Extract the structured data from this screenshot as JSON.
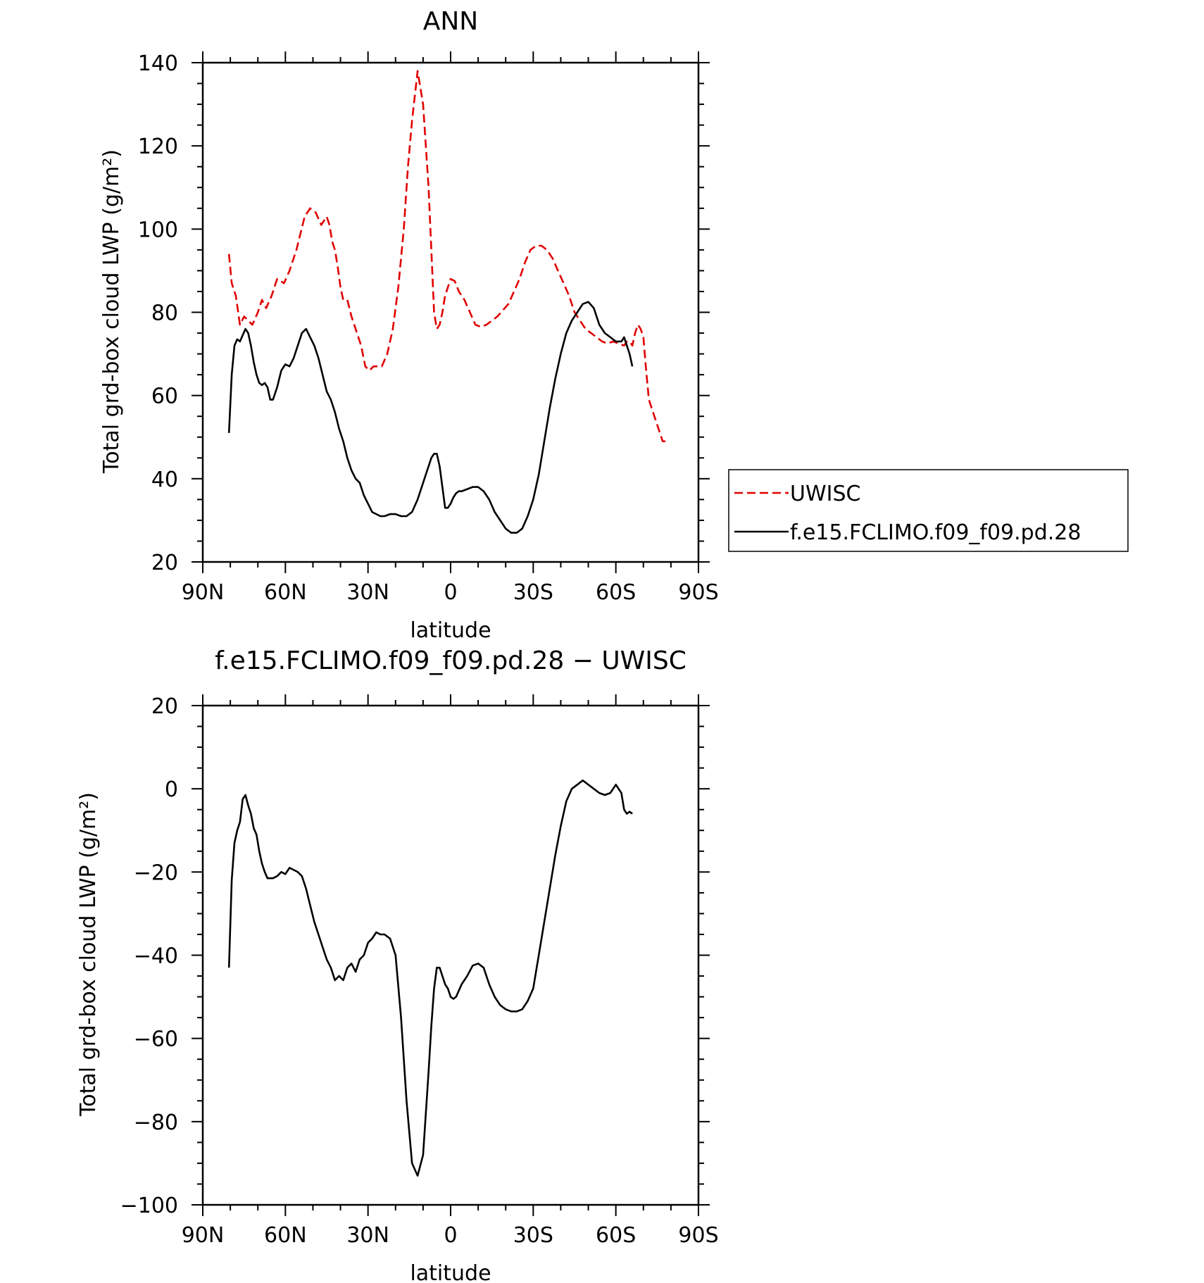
{
  "chart_data": [
    {
      "type": "line",
      "title": "ANN",
      "xlabel": "latitude",
      "ylabel": "Total grd-box cloud LWP (g/m²)",
      "xlim": [
        90,
        -90
      ],
      "ylim": [
        20,
        140
      ],
      "xticks": [
        90,
        60,
        30,
        0,
        -30,
        -60,
        -90
      ],
      "xtick_labels": [
        "90N",
        "60N",
        "30N",
        "0",
        "30S",
        "60S",
        "90S"
      ],
      "yticks": [
        20,
        40,
        60,
        80,
        100,
        120,
        140
      ],
      "ytick_labels": [
        "20",
        "40",
        "60",
        "80",
        "100",
        "120",
        "140"
      ],
      "legend": {
        "placement": "right",
        "entries": [
          {
            "label": "UWISC",
            "color": "#e00000",
            "style": "dashed"
          },
          {
            "label": "f.e15.FCLIMO.f09_f09.pd.28",
            "color": "#000000",
            "style": "solid"
          }
        ]
      },
      "series": [
        {
          "name": "UWISC",
          "color": "#e00000",
          "style": "dashed",
          "x": [
            80.5,
            79.5,
            78,
            76.5,
            75,
            73.5,
            72,
            70,
            68.5,
            67,
            65,
            63,
            60.5,
            58.5,
            56,
            53,
            51,
            49,
            47,
            45,
            44,
            43,
            42,
            41,
            40,
            39,
            37.5,
            36,
            34,
            32.5,
            31,
            29.5,
            28,
            26.5,
            25,
            23,
            21,
            19,
            17,
            15.5,
            14,
            12,
            10,
            9,
            8,
            7,
            6,
            5,
            4,
            3,
            2,
            1,
            0,
            -1.5,
            -3,
            -5,
            -7,
            -9,
            -11,
            -13,
            -15,
            -17,
            -19,
            -21,
            -23,
            -25,
            -27,
            -29,
            -31,
            -33,
            -35,
            -37,
            -39,
            -41,
            -43,
            -45,
            -47,
            -49,
            -51,
            -53,
            -55,
            -57,
            -59,
            -61,
            -63,
            -64,
            -65,
            -66,
            -67,
            -68,
            -69,
            -70,
            -71,
            -72,
            -73,
            -74,
            -75,
            -76,
            -77,
            -78
          ],
          "y": [
            94,
            87,
            84,
            77,
            79,
            78,
            77,
            80,
            83,
            81,
            84,
            88,
            87,
            90,
            95,
            103,
            105,
            104,
            101,
            103,
            101,
            97,
            95,
            91,
            86,
            83,
            83,
            79,
            75,
            72,
            67,
            66,
            67,
            67,
            67,
            70,
            76,
            86,
            100,
            115,
            126,
            138,
            130,
            120,
            110,
            95,
            80,
            76,
            77,
            80,
            84,
            86,
            88,
            87.5,
            85,
            83,
            80,
            77,
            76.5,
            77,
            78,
            79,
            80.5,
            82,
            85,
            88,
            92,
            95,
            96,
            96,
            95,
            93,
            90,
            87,
            84,
            80,
            78,
            76,
            75,
            74,
            73,
            72.5,
            73,
            72.5,
            72,
            73,
            73,
            72,
            75,
            77,
            76,
            74,
            66,
            59,
            57,
            55,
            53,
            51,
            49,
            49
          ]
        },
        {
          "name": "f.e15.FCLIMO.f09_f09.pd.28",
          "color": "#000000",
          "style": "solid",
          "x": [
            80.5,
            79.5,
            78.5,
            77.5,
            76.5,
            75.5,
            74.5,
            73.5,
            72.5,
            71.5,
            70.5,
            69.5,
            68.5,
            67.5,
            66.5,
            65.5,
            64.5,
            63,
            61.5,
            60,
            58.5,
            57,
            55.5,
            54,
            52.5,
            51,
            49.5,
            48,
            46.5,
            45,
            43.5,
            42,
            40.5,
            39,
            37.5,
            36,
            34.5,
            33,
            31.5,
            30,
            28.5,
            27,
            25.5,
            24,
            22,
            20,
            18,
            16,
            14,
            12,
            10,
            9,
            8,
            7,
            6,
            5,
            4,
            3,
            2,
            1,
            0,
            -1,
            -2,
            -3,
            -4,
            -6,
            -8,
            -10,
            -12,
            -14,
            -16,
            -18,
            -20,
            -22,
            -24,
            -26,
            -28,
            -30,
            -32,
            -34,
            -36,
            -38,
            -40,
            -42,
            -44,
            -46,
            -48,
            -50,
            -52,
            -54,
            -56,
            -58,
            -60,
            -62,
            -63,
            -64,
            -65,
            -66
          ],
          "y": [
            51,
            65,
            72,
            73.5,
            73,
            74.5,
            76,
            75,
            72,
            68,
            65,
            63,
            62.5,
            63,
            62,
            59,
            59,
            62,
            66,
            67.5,
            67,
            69,
            72,
            75,
            76,
            74,
            72,
            69,
            65,
            61,
            59,
            56,
            52,
            49,
            45,
            42,
            40,
            39,
            36,
            34,
            32,
            31.5,
            31,
            31,
            31.5,
            31.5,
            31,
            31,
            32,
            35,
            39,
            41,
            43,
            45,
            46,
            46,
            43,
            38,
            33,
            33,
            34,
            35.5,
            36.5,
            37,
            37,
            37.5,
            38,
            38,
            37,
            35,
            32,
            30,
            28,
            27,
            27,
            28,
            31,
            35,
            41,
            49,
            57,
            64,
            70,
            75,
            78,
            80,
            82,
            82.5,
            81,
            77,
            75,
            74,
            73,
            73,
            74,
            72,
            70,
            67
          ]
        }
      ]
    },
    {
      "type": "line",
      "title": "f.e15.FCLIMO.f09_f09.pd.28 − UWISC",
      "xlabel": "latitude",
      "ylabel": "Total grd-box cloud LWP (g/m²)",
      "xlim": [
        90,
        -90
      ],
      "ylim": [
        -100,
        20
      ],
      "xticks": [
        90,
        60,
        30,
        0,
        -30,
        -60,
        -90
      ],
      "xtick_labels": [
        "90N",
        "60N",
        "30N",
        "0",
        "30S",
        "60S",
        "90S"
      ],
      "yticks": [
        -100,
        -80,
        -60,
        -40,
        -20,
        0,
        20
      ],
      "ytick_labels": [
        "−100",
        "−80",
        "−60",
        "−40",
        "−20",
        "0",
        "20"
      ],
      "series": [
        {
          "name": "",
          "color": "#000000",
          "style": "solid",
          "x": [
            80.5,
            79.5,
            78.5,
            77.5,
            76.5,
            75.5,
            74.5,
            73.5,
            72.5,
            71.5,
            70.5,
            69.5,
            68.5,
            67.5,
            66.5,
            65.5,
            64.5,
            63,
            61.5,
            60,
            58.5,
            57,
            55.5,
            54,
            52.5,
            51,
            49.5,
            48,
            46.5,
            45,
            43.5,
            42,
            40.5,
            39,
            37.5,
            36,
            34.5,
            33,
            31.5,
            30,
            28.5,
            27,
            25.5,
            24,
            22,
            20,
            18,
            16,
            14,
            12,
            10,
            9,
            8,
            7,
            6,
            5,
            4,
            3,
            2,
            1,
            0,
            -1,
            -2,
            -3,
            -4,
            -6,
            -8,
            -10,
            -12,
            -14,
            -16,
            -18,
            -20,
            -22,
            -24,
            -26,
            -28,
            -30,
            -32,
            -34,
            -36,
            -38,
            -40,
            -42,
            -44,
            -46,
            -48,
            -50,
            -52,
            -54,
            -56,
            -58,
            -60,
            -62,
            -63,
            -64,
            -65,
            -66
          ],
          "y": [
            -43,
            -22,
            -13,
            -10,
            -8,
            -2.5,
            -1.5,
            -4,
            -6,
            -9.5,
            -11,
            -15,
            -18,
            -20,
            -21.5,
            -21.5,
            -21.5,
            -21,
            -20,
            -20.5,
            -19,
            -19.5,
            -20,
            -21,
            -24,
            -28,
            -32,
            -35,
            -38,
            -41,
            -43,
            -46,
            -45,
            -46,
            -43,
            -42,
            -44,
            -41,
            -40,
            -37,
            -36,
            -34.5,
            -35,
            -35,
            -36,
            -40,
            -55,
            -75,
            -90,
            -93,
            -88,
            -78,
            -68,
            -57,
            -48,
            -43,
            -43,
            -45,
            -47,
            -48,
            -50,
            -50.5,
            -50,
            -48.5,
            -47,
            -45,
            -42.5,
            -42,
            -43,
            -47,
            -50,
            -52,
            -53,
            -53.5,
            -53.5,
            -53,
            -51,
            -48,
            -40,
            -32,
            -24,
            -16,
            -9,
            -3,
            0,
            1,
            2,
            1,
            0,
            -1,
            -1.5,
            -1,
            1,
            -1,
            -5,
            -6,
            -5.5,
            -6
          ]
        }
      ]
    }
  ]
}
